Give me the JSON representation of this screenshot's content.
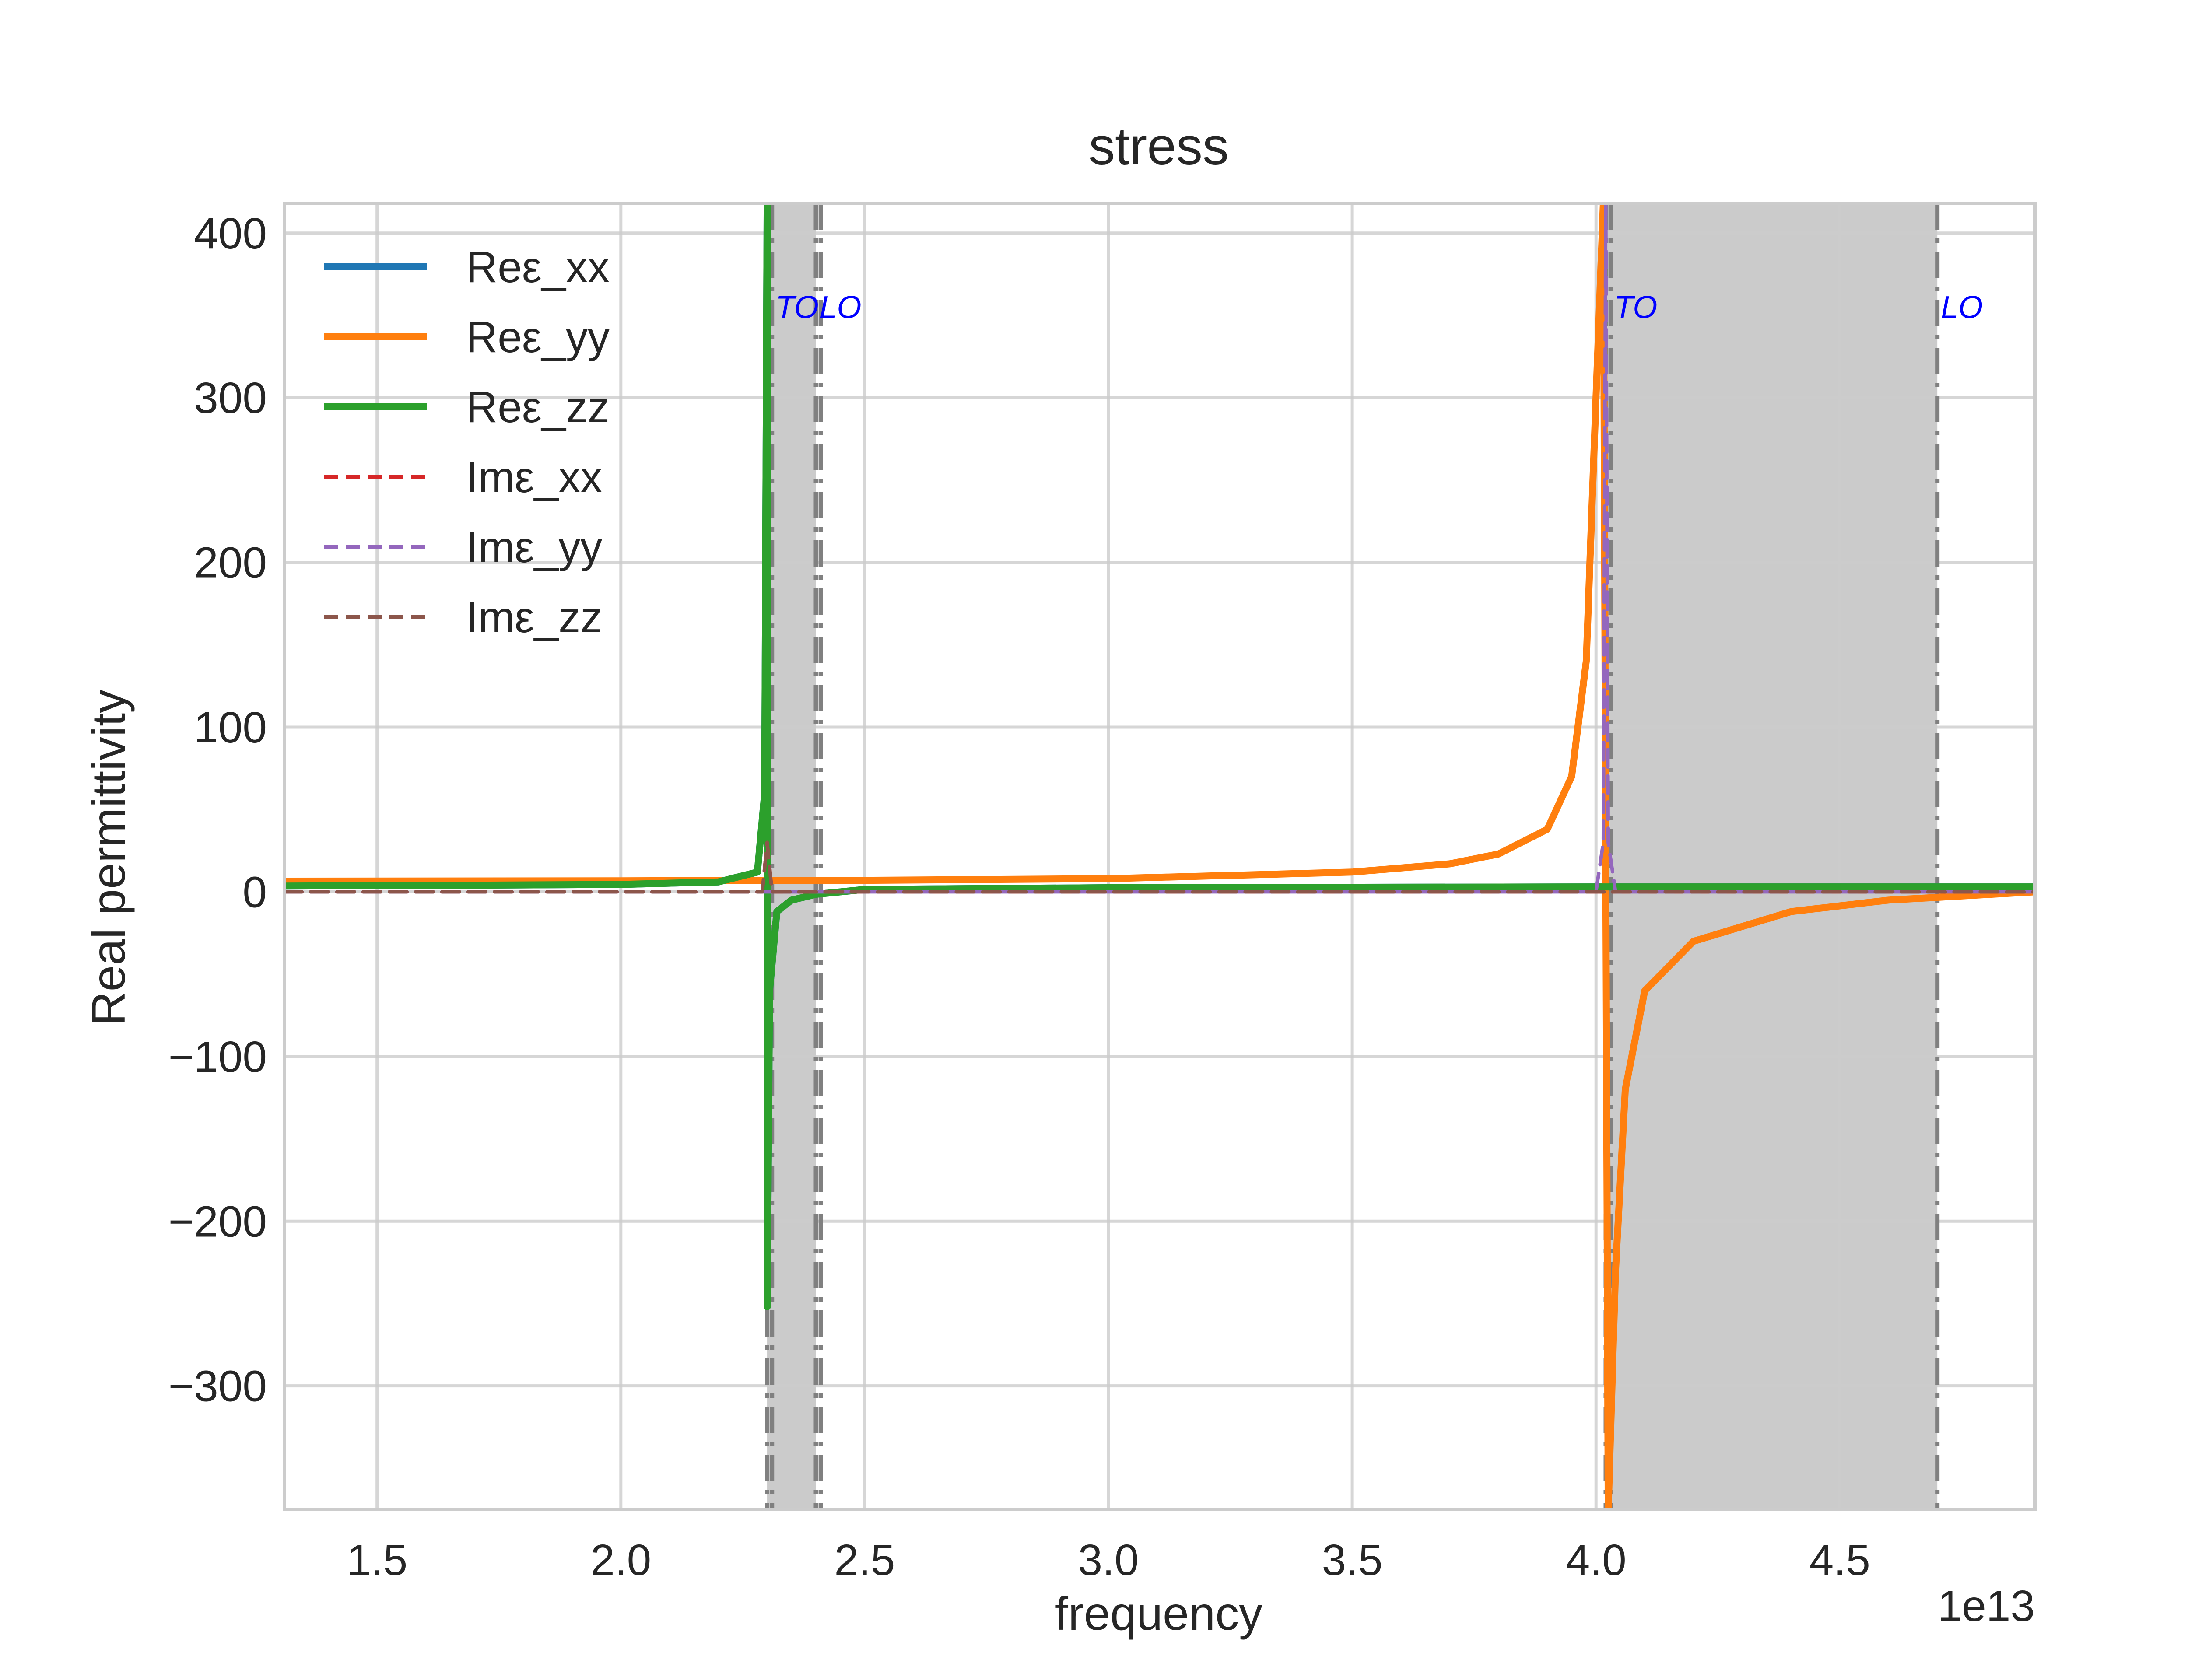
{
  "chart_data": {
    "type": "line",
    "title": "stress",
    "xlabel": "frequency",
    "ylabel": "Real permittivity",
    "x_offset_label": "1e13",
    "xlim": [
      13100000000000.0,
      49000000000000.0
    ],
    "ylim": [
      -375,
      418
    ],
    "xticks": [
      {
        "value": 15000000000000.0,
        "label": "1.5"
      },
      {
        "value": 20000000000000.0,
        "label": "2.0"
      },
      {
        "value": 25000000000000.0,
        "label": "2.5"
      },
      {
        "value": 30000000000000.0,
        "label": "3.0"
      },
      {
        "value": 35000000000000.0,
        "label": "3.5"
      },
      {
        "value": 40000000000000.0,
        "label": "4.0"
      },
      {
        "value": 45000000000000.0,
        "label": "4.5"
      }
    ],
    "yticks": [
      {
        "value": 400,
        "label": "400"
      },
      {
        "value": 300,
        "label": "300"
      },
      {
        "value": 200,
        "label": "200"
      },
      {
        "value": 100,
        "label": "100"
      },
      {
        "value": 0,
        "label": "0"
      },
      {
        "value": -100,
        "label": "−100"
      },
      {
        "value": -200,
        "label": "−200"
      },
      {
        "value": -300,
        "label": "−300"
      }
    ],
    "grid": true,
    "legend_position": "upper-left",
    "bands": [
      {
        "x0": 23000000000000.0,
        "x1": 24000000000000.0,
        "color": "#cbcbcb"
      },
      {
        "x0": 40200000000000.0,
        "x1": 47000000000000.0,
        "color": "#cbcbcb"
      }
    ],
    "vlines": [
      {
        "x": 23000000000000.0
      },
      {
        "x": 23100000000000.0
      },
      {
        "x": 24000000000000.0
      },
      {
        "x": 24100000000000.0
      },
      {
        "x": 40200000000000.0
      },
      {
        "x": 40300000000000.0
      },
      {
        "x": 47000000000000.0
      }
    ],
    "annotations": [
      {
        "text": "TO",
        "x": 23100000000000.0,
        "y": 355
      },
      {
        "text": "LO",
        "x": 24000000000000.0,
        "y": 355
      },
      {
        "text": "TO",
        "x": 40300000000000.0,
        "y": 355
      },
      {
        "text": "LO",
        "x": 47000000000000.0,
        "y": 355
      }
    ],
    "annotation_color": "#0000ff",
    "series": [
      {
        "name": "Reε_xx",
        "color": "#1f77b4",
        "style": "solid",
        "points": [
          [
            13100000000000.0,
            3.5
          ],
          [
            20000000000000.0,
            4.5
          ],
          [
            22000000000000.0,
            6
          ],
          [
            22800000000000.0,
            12
          ],
          [
            22950000000000.0,
            60
          ],
          [
            23000000000000.0,
            418
          ],
          [
            23001000000000.0,
            -252
          ],
          [
            23050000000000.0,
            -60
          ],
          [
            23200000000000.0,
            -12
          ],
          [
            23500000000000.0,
            -5
          ],
          [
            24000000000000.0,
            -1.5
          ],
          [
            25000000000000.0,
            1.5
          ],
          [
            30000000000000.0,
            2.5
          ],
          [
            40000000000000.0,
            3
          ],
          [
            49000000000000.0,
            3
          ]
        ]
      },
      {
        "name": "Reε_yy",
        "color": "#ff7f0e",
        "style": "solid",
        "points": [
          [
            13100000000000.0,
            6.5
          ],
          [
            20000000000000.0,
            6.7
          ],
          [
            23000000000000.0,
            7
          ],
          [
            25000000000000.0,
            7
          ],
          [
            30000000000000.0,
            8
          ],
          [
            35000000000000.0,
            12
          ],
          [
            37000000000000.0,
            17
          ],
          [
            38000000000000.0,
            23
          ],
          [
            39000000000000.0,
            38
          ],
          [
            39500000000000.0,
            70
          ],
          [
            39800000000000.0,
            140
          ],
          [
            40000000000000.0,
            300
          ],
          [
            40150000000000.0,
            418
          ],
          [
            40250000000000.0,
            -375
          ],
          [
            40400000000000.0,
            -230
          ],
          [
            40600000000000.0,
            -120
          ],
          [
            41000000000000.0,
            -60
          ],
          [
            42000000000000.0,
            -30
          ],
          [
            44000000000000.0,
            -12
          ],
          [
            46000000000000.0,
            -5
          ],
          [
            49000000000000.0,
            0
          ]
        ]
      },
      {
        "name": "Reε_zz",
        "color": "#2ca02c",
        "style": "solid",
        "points": [
          [
            13100000000000.0,
            3.5
          ],
          [
            20000000000000.0,
            4.5
          ],
          [
            22000000000000.0,
            6
          ],
          [
            22800000000000.0,
            12
          ],
          [
            22950000000000.0,
            60
          ],
          [
            23000000000000.0,
            418
          ],
          [
            23001000000000.0,
            -252
          ],
          [
            23050000000000.0,
            -60
          ],
          [
            23200000000000.0,
            -12
          ],
          [
            23500000000000.0,
            -5
          ],
          [
            24000000000000.0,
            -1.5
          ],
          [
            25000000000000.0,
            1.5
          ],
          [
            30000000000000.0,
            2.5
          ],
          [
            40000000000000.0,
            3
          ],
          [
            49000000000000.0,
            3
          ]
        ]
      },
      {
        "name": "Imε_xx",
        "color": "#d62728",
        "style": "dashed",
        "points": [
          [
            13100000000000.0,
            0
          ],
          [
            22900000000000.0,
            0
          ],
          [
            23000000000000.0,
            30
          ],
          [
            23100000000000.0,
            0
          ],
          [
            49000000000000.0,
            0
          ]
        ]
      },
      {
        "name": "Imε_yy",
        "color": "#9467bd",
        "style": "dashed",
        "points": [
          [
            13100000000000.0,
            0
          ],
          [
            40000000000000.0,
            0
          ],
          [
            40150000000000.0,
            30
          ],
          [
            40200000000000.0,
            418
          ],
          [
            40250000000000.0,
            30
          ],
          [
            40400000000000.0,
            0
          ],
          [
            49000000000000.0,
            0
          ]
        ]
      },
      {
        "name": "Imε_zz",
        "color": "#8c564b",
        "style": "dashed",
        "points": [
          [
            13100000000000.0,
            0
          ],
          [
            22900000000000.0,
            0
          ],
          [
            23000000000000.0,
            30
          ],
          [
            23100000000000.0,
            0
          ],
          [
            49000000000000.0,
            0
          ]
        ]
      }
    ]
  }
}
